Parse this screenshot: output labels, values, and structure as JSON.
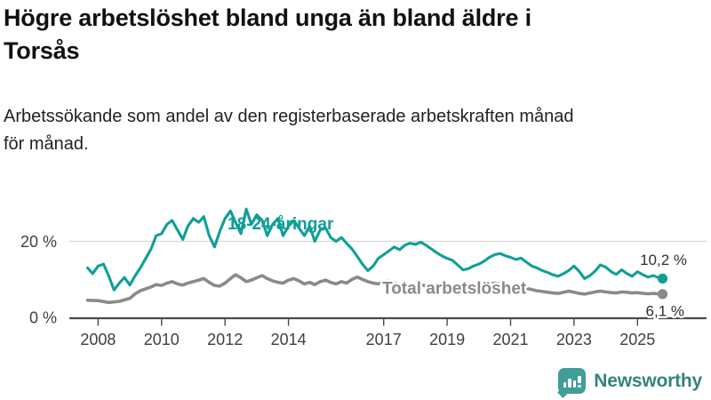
{
  "title": "Högre arbetslöshet bland unga än bland äldre i Torsås",
  "title_lines": [
    "Högre arbetslöshet bland unga än bland äldre i",
    "Torsås"
  ],
  "subtitle": "Arbetssökande som andel av den registerbaserade arbetskraften månad för månad.",
  "subtitle_lines": [
    "Arbetssökande som andel av den registerbaserade arbetskraften månad",
    "för månad."
  ],
  "branding": {
    "name": "Newsworthy",
    "icon": "newsworthy-bar-chart-speech-bubble-icon",
    "color": "#3f9e98"
  },
  "chart_data": {
    "type": "line",
    "title": "Högre arbetslöshet bland unga än bland äldre i Torsås",
    "subtitle": "Arbetssökande som andel av den registerbaserade arbetskraften månad för månad.",
    "xlabel": "",
    "ylabel": "",
    "x_unit": "year (monthly data)",
    "y_unit": "percent",
    "x_range": [
      2007.58,
      2025.83
    ],
    "ylim": [
      0,
      30
    ],
    "grid": "y-only",
    "legend": "inline-labels",
    "x_axis": {
      "ticks": [
        {
          "year": 2008,
          "label": "2008"
        },
        {
          "year": 2010,
          "label": "2010"
        },
        {
          "year": 2012,
          "label": "2012"
        },
        {
          "year": 2014,
          "label": "2014"
        },
        {
          "year": 2017,
          "label": "2017"
        },
        {
          "year": 2019,
          "label": "2019"
        },
        {
          "year": 2021,
          "label": "2021"
        },
        {
          "year": 2023,
          "label": "2023"
        },
        {
          "year": 2025,
          "label": "2025"
        }
      ]
    },
    "y_axis": {
      "ticks": [
        {
          "value": 20,
          "label": "20 %"
        },
        {
          "value": 0,
          "label": "0 %"
        }
      ]
    },
    "series": [
      {
        "name": "18-24-åringar",
        "color": "#0f9f97",
        "end_value_label": "10,2 %",
        "end_value": 10.2,
        "points": [
          [
            2007.67,
            13.0
          ],
          [
            2007.83,
            11.5
          ],
          [
            2008.0,
            13.5
          ],
          [
            2008.17,
            14.0
          ],
          [
            2008.33,
            11.0
          ],
          [
            2008.5,
            7.2
          ],
          [
            2008.67,
            9.0
          ],
          [
            2008.83,
            10.5
          ],
          [
            2009.0,
            8.5
          ],
          [
            2009.17,
            11.0
          ],
          [
            2009.33,
            13.0
          ],
          [
            2009.5,
            15.5
          ],
          [
            2009.67,
            18.0
          ],
          [
            2009.83,
            21.5
          ],
          [
            2010.0,
            22.0
          ],
          [
            2010.17,
            24.5
          ],
          [
            2010.33,
            25.5
          ],
          [
            2010.5,
            23.0
          ],
          [
            2010.67,
            20.5
          ],
          [
            2010.83,
            24.0
          ],
          [
            2011.0,
            26.0
          ],
          [
            2011.17,
            25.0
          ],
          [
            2011.33,
            26.5
          ],
          [
            2011.5,
            21.5
          ],
          [
            2011.67,
            18.5
          ],
          [
            2011.83,
            22.5
          ],
          [
            2012.0,
            26.0
          ],
          [
            2012.17,
            28.0
          ],
          [
            2012.33,
            25.0
          ],
          [
            2012.5,
            22.0
          ],
          [
            2012.67,
            28.5
          ],
          [
            2012.83,
            24.5
          ],
          [
            2013.0,
            27.0
          ],
          [
            2013.17,
            25.5
          ],
          [
            2013.33,
            21.5
          ],
          [
            2013.5,
            24.5
          ],
          [
            2013.67,
            26.0
          ],
          [
            2013.83,
            21.5
          ],
          [
            2014.0,
            24.0
          ],
          [
            2014.17,
            25.5
          ],
          [
            2014.33,
            23.5
          ],
          [
            2014.5,
            21.5
          ],
          [
            2014.67,
            24.0
          ],
          [
            2014.83,
            20.0
          ],
          [
            2015.0,
            23.0
          ],
          [
            2015.17,
            23.5
          ],
          [
            2015.33,
            21.0
          ],
          [
            2015.5,
            20.0
          ],
          [
            2015.67,
            21.0
          ],
          [
            2015.83,
            19.5
          ],
          [
            2016.0,
            18.0
          ],
          [
            2016.17,
            16.0
          ],
          [
            2016.33,
            14.0
          ],
          [
            2016.5,
            12.3
          ],
          [
            2016.67,
            13.5
          ],
          [
            2016.83,
            15.5
          ],
          [
            2017.0,
            16.5
          ],
          [
            2017.17,
            17.5
          ],
          [
            2017.33,
            18.5
          ],
          [
            2017.5,
            17.8
          ],
          [
            2017.67,
            19.0
          ],
          [
            2017.83,
            19.5
          ],
          [
            2018.0,
            19.2
          ],
          [
            2018.17,
            19.8
          ],
          [
            2018.33,
            19.0
          ],
          [
            2018.5,
            18.0
          ],
          [
            2018.67,
            17.0
          ],
          [
            2018.83,
            16.2
          ],
          [
            2019.0,
            15.5
          ],
          [
            2019.17,
            15.0
          ],
          [
            2019.33,
            13.8
          ],
          [
            2019.5,
            12.5
          ],
          [
            2019.67,
            12.8
          ],
          [
            2019.83,
            13.5
          ],
          [
            2020.0,
            14.0
          ],
          [
            2020.17,
            14.8
          ],
          [
            2020.33,
            15.8
          ],
          [
            2020.5,
            16.5
          ],
          [
            2020.67,
            16.8
          ],
          [
            2020.83,
            16.2
          ],
          [
            2021.0,
            15.8
          ],
          [
            2021.17,
            15.2
          ],
          [
            2021.33,
            15.6
          ],
          [
            2021.5,
            14.5
          ],
          [
            2021.67,
            13.5
          ],
          [
            2021.83,
            13.0
          ],
          [
            2022.0,
            12.3
          ],
          [
            2022.17,
            11.8
          ],
          [
            2022.33,
            11.2
          ],
          [
            2022.5,
            10.8
          ],
          [
            2022.67,
            11.5
          ],
          [
            2022.83,
            12.3
          ],
          [
            2023.0,
            13.5
          ],
          [
            2023.17,
            12.0
          ],
          [
            2023.33,
            10.2
          ],
          [
            2023.5,
            11.0
          ],
          [
            2023.67,
            12.2
          ],
          [
            2023.83,
            13.8
          ],
          [
            2024.0,
            13.2
          ],
          [
            2024.17,
            12.0
          ],
          [
            2024.33,
            11.3
          ],
          [
            2024.5,
            12.5
          ],
          [
            2024.67,
            11.5
          ],
          [
            2024.83,
            10.8
          ],
          [
            2025.0,
            12.0
          ],
          [
            2025.17,
            11.2
          ],
          [
            2025.33,
            10.6
          ],
          [
            2025.5,
            11.0
          ],
          [
            2025.67,
            10.4
          ],
          [
            2025.79,
            10.2
          ]
        ]
      },
      {
        "name": "Total arbetslöshet",
        "color": "#8a8a8a",
        "end_value_label": "6,1 %",
        "end_value": 6.1,
        "points": [
          [
            2007.67,
            4.5
          ],
          [
            2008.0,
            4.4
          ],
          [
            2008.33,
            3.9
          ],
          [
            2008.67,
            4.2
          ],
          [
            2009.0,
            5.0
          ],
          [
            2009.17,
            6.2
          ],
          [
            2009.33,
            7.0
          ],
          [
            2009.5,
            7.5
          ],
          [
            2009.67,
            8.0
          ],
          [
            2009.83,
            8.6
          ],
          [
            2010.0,
            8.4
          ],
          [
            2010.17,
            9.0
          ],
          [
            2010.33,
            9.4
          ],
          [
            2010.5,
            8.8
          ],
          [
            2010.67,
            8.5
          ],
          [
            2010.83,
            9.0
          ],
          [
            2011.0,
            9.4
          ],
          [
            2011.17,
            9.8
          ],
          [
            2011.33,
            10.2
          ],
          [
            2011.5,
            9.2
          ],
          [
            2011.67,
            8.4
          ],
          [
            2011.83,
            8.2
          ],
          [
            2012.0,
            9.0
          ],
          [
            2012.17,
            10.2
          ],
          [
            2012.33,
            11.2
          ],
          [
            2012.5,
            10.4
          ],
          [
            2012.67,
            9.4
          ],
          [
            2012.83,
            9.8
          ],
          [
            2013.0,
            10.4
          ],
          [
            2013.17,
            11.0
          ],
          [
            2013.33,
            10.2
          ],
          [
            2013.5,
            9.6
          ],
          [
            2013.67,
            9.2
          ],
          [
            2013.83,
            9.0
          ],
          [
            2014.0,
            9.8
          ],
          [
            2014.17,
            10.2
          ],
          [
            2014.33,
            9.6
          ],
          [
            2014.5,
            8.8
          ],
          [
            2014.67,
            9.2
          ],
          [
            2014.83,
            8.6
          ],
          [
            2015.0,
            9.4
          ],
          [
            2015.17,
            9.8
          ],
          [
            2015.33,
            9.2
          ],
          [
            2015.5,
            8.8
          ],
          [
            2015.67,
            9.4
          ],
          [
            2015.83,
            9.0
          ],
          [
            2016.0,
            10.0
          ],
          [
            2016.17,
            10.6
          ],
          [
            2016.33,
            10.0
          ],
          [
            2016.5,
            9.4
          ],
          [
            2016.67,
            9.0
          ],
          [
            2016.83,
            8.8
          ],
          [
            2017.0,
            9.4
          ],
          [
            2017.17,
            9.6
          ],
          [
            2017.33,
            9.0
          ],
          [
            2017.5,
            8.6
          ],
          [
            2017.67,
            8.4
          ],
          [
            2017.83,
            8.2
          ],
          [
            2018.0,
            8.4
          ],
          [
            2018.17,
            8.6
          ],
          [
            2018.33,
            8.2
          ],
          [
            2018.5,
            7.9
          ],
          [
            2018.67,
            7.7
          ],
          [
            2018.83,
            7.5
          ],
          [
            2019.0,
            7.6
          ],
          [
            2019.17,
            7.8
          ],
          [
            2019.33,
            7.5
          ],
          [
            2019.5,
            7.2
          ],
          [
            2019.67,
            7.1
          ],
          [
            2019.83,
            7.3
          ],
          [
            2020.0,
            7.6
          ],
          [
            2020.17,
            8.2
          ],
          [
            2020.33,
            8.8
          ],
          [
            2020.5,
            9.0
          ],
          [
            2020.67,
            8.8
          ],
          [
            2020.83,
            8.6
          ],
          [
            2021.0,
            8.4
          ],
          [
            2021.17,
            8.2
          ],
          [
            2021.33,
            7.9
          ],
          [
            2021.5,
            7.6
          ],
          [
            2021.67,
            7.3
          ],
          [
            2021.83,
            7.0
          ],
          [
            2022.0,
            6.8
          ],
          [
            2022.17,
            6.6
          ],
          [
            2022.33,
            6.4
          ],
          [
            2022.5,
            6.3
          ],
          [
            2022.67,
            6.6
          ],
          [
            2022.83,
            6.9
          ],
          [
            2023.0,
            6.6
          ],
          [
            2023.17,
            6.3
          ],
          [
            2023.33,
            6.1
          ],
          [
            2023.5,
            6.4
          ],
          [
            2023.67,
            6.7
          ],
          [
            2023.83,
            6.9
          ],
          [
            2024.0,
            6.7
          ],
          [
            2024.17,
            6.5
          ],
          [
            2024.33,
            6.4
          ],
          [
            2024.5,
            6.7
          ],
          [
            2024.67,
            6.6
          ],
          [
            2024.83,
            6.4
          ],
          [
            2025.0,
            6.5
          ],
          [
            2025.17,
            6.3
          ],
          [
            2025.33,
            6.2
          ],
          [
            2025.5,
            6.3
          ],
          [
            2025.67,
            6.15
          ],
          [
            2025.79,
            6.1
          ]
        ]
      }
    ]
  }
}
